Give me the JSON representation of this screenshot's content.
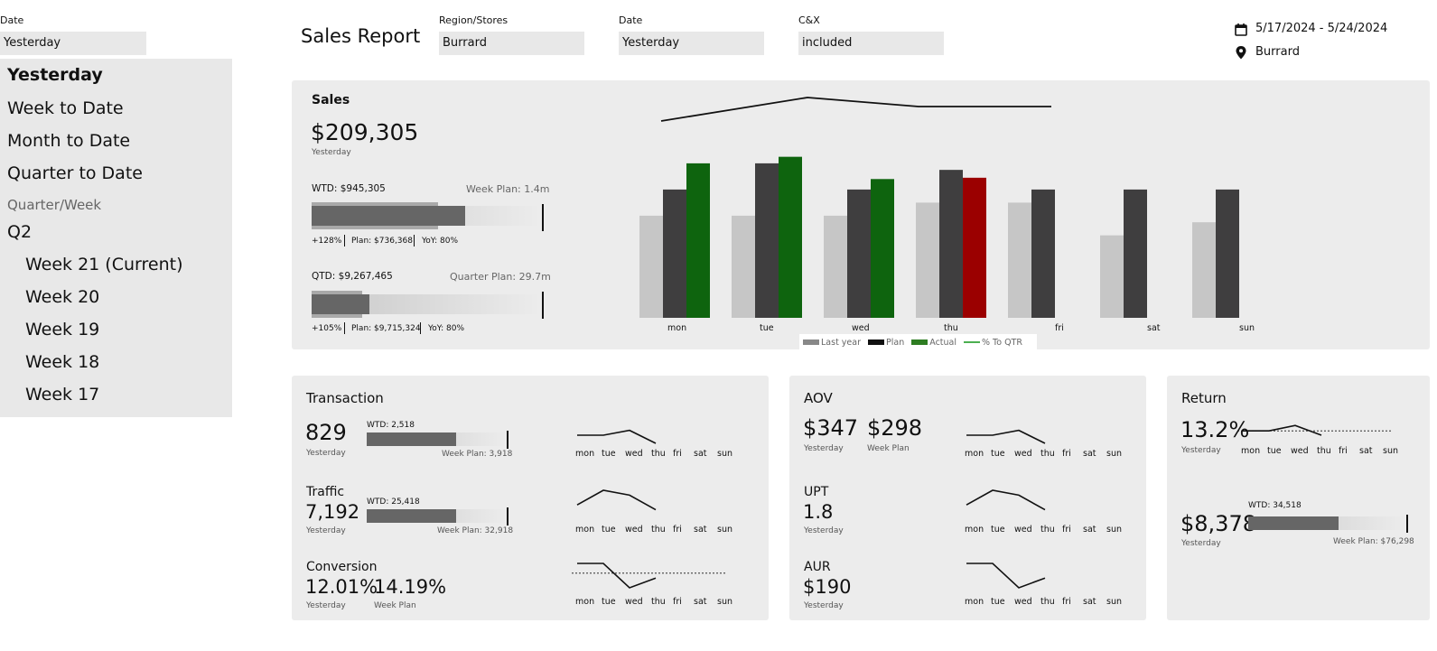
{
  "date_filter": {
    "label": "Date",
    "value": "Yesterday"
  },
  "date_dropdown": {
    "items": [
      {
        "label": "Yesterday",
        "kind": "sel"
      },
      {
        "label": "Week to Date",
        "kind": "item"
      },
      {
        "label": "Month to Date",
        "kind": "item"
      },
      {
        "label": "Quarter to Date",
        "kind": "item"
      },
      {
        "label": "Quarter/Week",
        "kind": "muted"
      },
      {
        "label": "Q2",
        "kind": "item"
      },
      {
        "label": "Week 21 (Current)",
        "kind": "sub"
      },
      {
        "label": "Week 20",
        "kind": "sub"
      },
      {
        "label": "Week 19",
        "kind": "sub"
      },
      {
        "label": "Week 18",
        "kind": "sub"
      },
      {
        "label": "Week 17",
        "kind": "sub"
      }
    ]
  },
  "header": {
    "title": "Sales Report",
    "filters": [
      {
        "label": "Region/Stores",
        "value": "Burrard"
      },
      {
        "label": "Date",
        "value": "Yesterday"
      },
      {
        "label": "C&X",
        "value": "included"
      }
    ],
    "date_range": "5/17/2024 - 5/24/2024",
    "location": "Burrard"
  },
  "sales": {
    "title": "Sales",
    "value": "$209,305",
    "period": "Yesterday",
    "wtd": {
      "label": "WTD: $945,305",
      "plan_label": "Week Plan: 1.4m",
      "pct": "+128%",
      "plan": "Plan: $736,368",
      "yoy": "YoY: 80%",
      "progress": 0.67,
      "ghost": 0.55
    },
    "qtd": {
      "label": "QTD: $9,267,465",
      "plan_label": "Quarter Plan: 29.7m",
      "pct": "+105%",
      "plan": "Plan: $9,715,324",
      "yoy": "YoY: 80%",
      "progress": 0.25,
      "ghost": 0.22
    }
  },
  "chart_data": {
    "type": "bar",
    "categories": [
      "mon",
      "tue",
      "wed",
      "thu",
      "fri",
      "sat",
      "sun"
    ],
    "series": [
      {
        "name": "Last year",
        "values": [
          78,
          78,
          78,
          88,
          88,
          63,
          73
        ]
      },
      {
        "name": "Plan",
        "values": [
          98,
          118,
          98,
          113,
          98,
          98,
          98
        ]
      },
      {
        "name": "Actual",
        "values": [
          118,
          123,
          106,
          107,
          null,
          null,
          null
        ]
      },
      {
        "name": "% To QTR",
        "values": [
          128,
          140,
          131,
          131,
          null,
          null,
          null
        ]
      }
    ],
    "actual_colors": [
      "#0e640e",
      "#0e640e",
      "#0e640e",
      "#9b0000"
    ],
    "colors": {
      "last_year": "#c6c6c6",
      "plan": "#3f3e3f",
      "actual": "#0e640e",
      "negative": "#9b0000",
      "pct_line": "#111111"
    },
    "legend": [
      "Last year",
      "Plan",
      "Actual",
      "% To QTR"
    ],
    "legend_colors": [
      "#888888",
      "#111111",
      "#2e7d22",
      "#4caf50"
    ],
    "ylim": [
      0,
      150
    ]
  },
  "transaction": {
    "title": "Transaction",
    "rows": [
      {
        "name": "",
        "value": "829",
        "period": "Yesterday",
        "wtd": "WTD: 2,518",
        "plan": "Week Plan: 3,918",
        "progress": 0.64,
        "spark": [
          0.5,
          0.5,
          0.8,
          0.0
        ]
      },
      {
        "name": "Traffic",
        "value": "7,192",
        "period": "Yesterday",
        "wtd": "WTD: 25,418",
        "plan": "Week Plan: 32,918",
        "progress": 0.64,
        "spark": [
          0.4,
          1.0,
          0.8,
          0.2
        ]
      },
      {
        "name": "Conversion",
        "value": "12.01%",
        "period": "Yesterday",
        "plan_value": "14.19%",
        "plan_period": "Week Plan",
        "spark": [
          1.0,
          1.0,
          0.0,
          0.4
        ],
        "spark_ref": 0.6
      }
    ]
  },
  "aov": {
    "title": "AOV",
    "value": "$347",
    "period": "Yesterday",
    "plan_value": "$298",
    "plan_period": "Week Plan",
    "spark": [
      0.5,
      0.5,
      0.8,
      0.0
    ],
    "upt": {
      "name": "UPT",
      "value": "1.8",
      "period": "Yesterday",
      "spark": [
        0.4,
        1.0,
        0.8,
        0.2
      ]
    },
    "aur": {
      "name": "AUR",
      "value": "$190",
      "period": "Yesterday",
      "spark": [
        1.0,
        1.0,
        0.0,
        0.4
      ]
    }
  },
  "return": {
    "title": "Return",
    "pct": "13.2%",
    "pct_period": "Yesterday",
    "spark": [
      0.4,
      0.4,
      0.9,
      0.0
    ],
    "spark_ref": 0.4,
    "value": "$8,378",
    "period": "Yesterday",
    "wtd": "WTD: 34,518",
    "plan": "Week Plan: $76,298",
    "progress": 0.57
  },
  "days": [
    "mon",
    "tue",
    "wed",
    "thu",
    "fri",
    "sat",
    "sun"
  ]
}
